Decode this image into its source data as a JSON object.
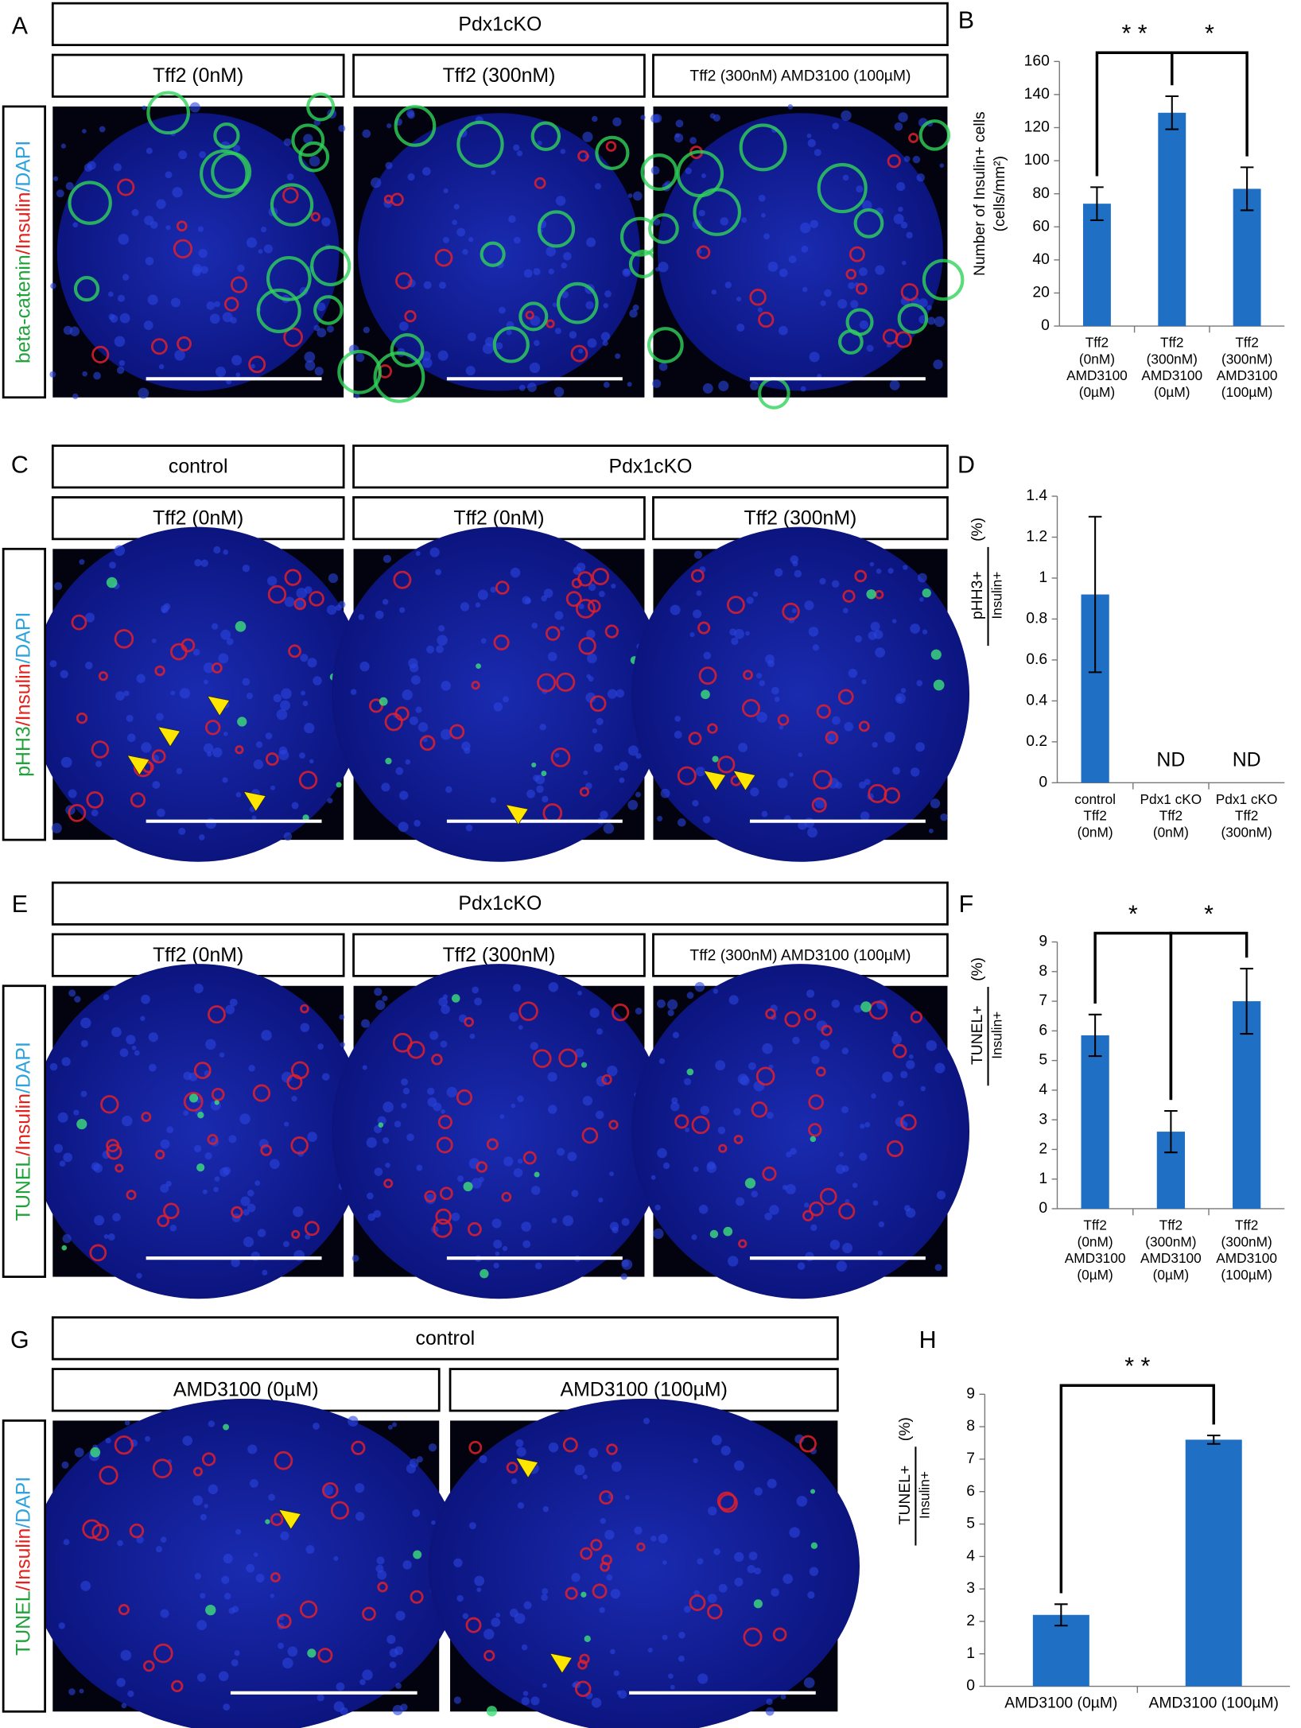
{
  "rows": [
    {
      "letter": "A",
      "headers": [
        "Pdx1cKO"
      ],
      "conditions": [
        "Tff2 (0nM)",
        "Tff2 (300nM)",
        "Tff2 (300nM) AMD3100 (100µM)"
      ],
      "stain": [
        "beta-catenin",
        "/Insulin",
        "/DAPI"
      ]
    },
    {
      "letter": "C",
      "headers": [
        "control",
        "Pdx1cKO"
      ],
      "conditions": [
        "Tff2 (0nM)",
        "Tff2 (0nM)",
        "Tff2 (300nM)"
      ],
      "stain": [
        "pHH3",
        "/Insulin",
        "/DAPI"
      ]
    },
    {
      "letter": "E",
      "headers": [
        "Pdx1cKO"
      ],
      "conditions": [
        "Tff2 (0nM)",
        "Tff2 (300nM)",
        "Tff2 (300nM) AMD3100 (100µM)"
      ],
      "stain": [
        "TUNEL",
        "/Insulin",
        "/DAPI"
      ]
    },
    {
      "letter": "G",
      "headers": [
        "control"
      ],
      "conditions": [
        "AMD3100 (0µM)",
        "AMD3100 (100µM)"
      ],
      "stain": [
        "TUNEL",
        "/Insulin",
        "/DAPI"
      ]
    }
  ],
  "chart_data": [
    {
      "type": "bar",
      "panel": "B",
      "ylabel": [
        "Number of Insulin+ cells",
        "(cells/mm²)"
      ],
      "categories": [
        [
          "Tff2",
          "(0nM)",
          "AMD3100",
          "(0µM)"
        ],
        [
          "Tff2",
          "(300nM)",
          "AMD3100",
          "(0µM)"
        ],
        [
          "Tff2",
          "(300nM)",
          "AMD3100",
          "(100µM)"
        ]
      ],
      "values": [
        74,
        129,
        83
      ],
      "errors": [
        10,
        10,
        13
      ],
      "color": "#1f6fc5",
      "ylim": [
        0,
        160
      ],
      "yticks": [
        0,
        20,
        40,
        60,
        80,
        100,
        120,
        140,
        160
      ],
      "significance": [
        {
          "from": 0,
          "to": 1,
          "label": "* *"
        },
        {
          "from": 1,
          "to": 2,
          "label": "*"
        }
      ]
    },
    {
      "type": "bar",
      "panel": "D",
      "ylabel": {
        "numerator": "pHH3+",
        "denominator": "Insulin+",
        "unit": "(%)"
      },
      "categories": [
        [
          "control",
          "Tff2",
          "(0nM)"
        ],
        [
          "Pdx1 cKO",
          "Tff2",
          "(0nM)"
        ],
        [
          "Pdx1 cKO",
          "Tff2",
          "(300nM)"
        ]
      ],
      "values": [
        0.92,
        null,
        null
      ],
      "value_labels": [
        null,
        "ND",
        "ND"
      ],
      "errors": [
        0.38,
        null,
        null
      ],
      "color": "#1f6fc5",
      "ylim": [
        0,
        1.4
      ],
      "yticks": [
        0,
        0.2,
        0.4,
        0.6,
        0.8,
        1,
        1.2,
        1.4
      ],
      "significance": []
    },
    {
      "type": "bar",
      "panel": "F",
      "ylabel": {
        "numerator": "TUNEL+",
        "denominator": "Insulin+",
        "unit": "(%)"
      },
      "categories": [
        [
          "Tff2",
          "(0nM)",
          "AMD3100",
          "(0µM)"
        ],
        [
          "Tff2",
          "(300nM)",
          "AMD3100",
          "(0µM)"
        ],
        [
          "Tff2",
          "(300nM)",
          "AMD3100",
          "(100µM)"
        ]
      ],
      "values": [
        5.85,
        2.6,
        7.0
      ],
      "errors": [
        0.7,
        0.7,
        1.1
      ],
      "color": "#1f6fc5",
      "ylim": [
        0,
        9
      ],
      "yticks": [
        0,
        1,
        2,
        3,
        4,
        5,
        6,
        7,
        8,
        9
      ],
      "significance": [
        {
          "from": 0,
          "to": 1,
          "label": "*"
        },
        {
          "from": 1,
          "to": 2,
          "label": "*"
        }
      ]
    },
    {
      "type": "bar",
      "panel": "H",
      "ylabel": {
        "numerator": "TUNEL+",
        "denominator": "Insulin+",
        "unit": "(%)"
      },
      "categories": [
        [
          "AMD3100 (0µM)"
        ],
        [
          "AMD3100 (100µM)"
        ]
      ],
      "values": [
        2.2,
        7.6
      ],
      "errors": [
        0.33,
        0.13
      ],
      "color": "#1f6fc5",
      "ylim": [
        0,
        9
      ],
      "yticks": [
        0,
        1,
        2,
        3,
        4,
        5,
        6,
        7,
        8,
        9
      ],
      "significance": [
        {
          "from": 0,
          "to": 1,
          "label": "* *"
        }
      ]
    }
  ]
}
